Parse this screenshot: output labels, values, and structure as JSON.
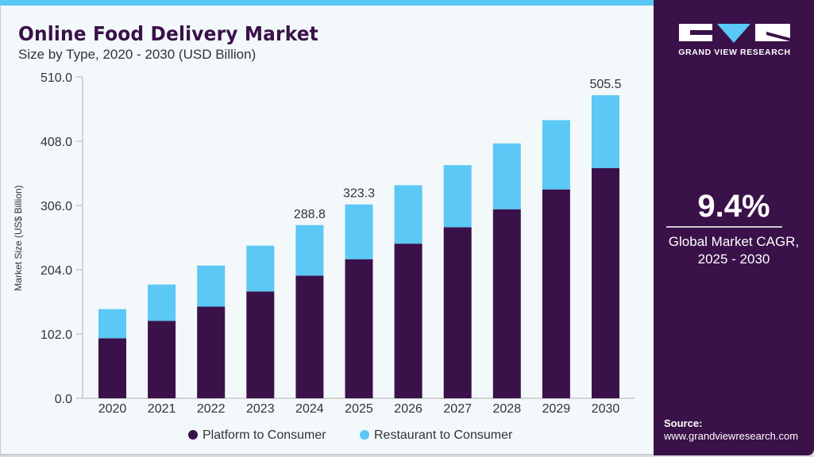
{
  "header": {
    "title": "Online Food Delivery Market",
    "subtitle": "Size by Type, 2020 - 2030 (USD Billion)"
  },
  "brand": {
    "name": "GRAND VIEW RESEARCH",
    "logo_icon": "gvr-logo-icon",
    "colors": {
      "panel": "#3a1149",
      "accent": "#5bc8f5"
    }
  },
  "highlight": {
    "value": "9.4%",
    "label_line1": "Global Market CAGR,",
    "label_line2": "2025 - 2030"
  },
  "source": {
    "label": "Source:",
    "url": "www.grandviewresearch.com"
  },
  "chart_data": {
    "type": "bar",
    "stacked": true,
    "title": "Online Food Delivery Market",
    "subtitle": "Size by Type, 2020 - 2030 (USD Billion)",
    "xlabel": "",
    "ylabel": "Market Size (US$ Billion)",
    "ylim": [
      0,
      510
    ],
    "yticks": [
      "0.0",
      "102.0",
      "204.0",
      "306.0",
      "408.0",
      "510.0"
    ],
    "ytick_values": [
      0,
      102,
      204,
      306,
      408,
      510
    ],
    "categories": [
      "2020",
      "2021",
      "2022",
      "2023",
      "2024",
      "2025",
      "2026",
      "2027",
      "2028",
      "2029",
      "2030"
    ],
    "series": [
      {
        "name": "Platform to Consumer",
        "color": "#3a1149",
        "values": [
          100.1,
          129.2,
          153.0,
          178.2,
          204.6,
          232.0,
          257.9,
          285.3,
          315.3,
          348.4,
          384.1
        ]
      },
      {
        "name": "Restaurant to Consumer",
        "color": "#5bc8f5",
        "values": [
          48.6,
          60.5,
          68.4,
          76.3,
          84.2,
          91.3,
          97.5,
          103.6,
          109.8,
          115.5,
          121.4
        ]
      }
    ],
    "totals": [
      148.7,
      189.7,
      221.4,
      254.5,
      288.8,
      323.3,
      355.4,
      388.9,
      425.1,
      463.9,
      505.5
    ],
    "data_labels": [
      {
        "category": "2024",
        "text": "288.8"
      },
      {
        "category": "2025",
        "text": "323.3"
      },
      {
        "category": "2030",
        "text": "505.5"
      }
    ],
    "legend": {
      "position": "bottom",
      "entries": [
        "Platform to Consumer",
        "Restaurant to Consumer"
      ]
    },
    "grid": false
  }
}
